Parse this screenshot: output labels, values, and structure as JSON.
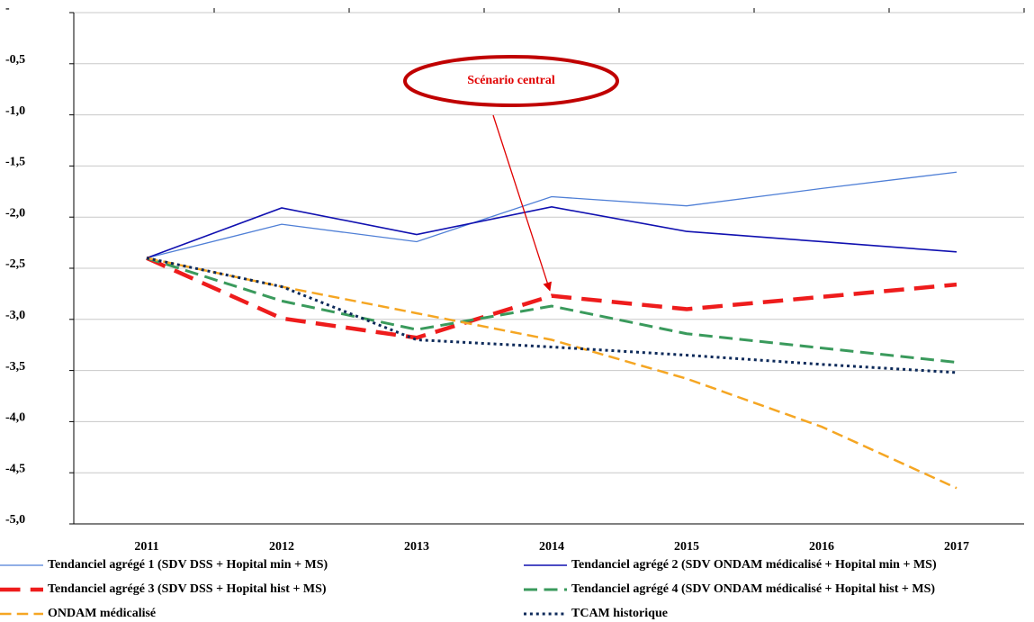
{
  "chart_data": {
    "type": "line",
    "annotation": "Scénario central",
    "categories": [
      "2011",
      "2012",
      "2013",
      "2014",
      "2015",
      "2016",
      "2017"
    ],
    "series": [
      {
        "name": "Tendanciel agrégé 1 (SDV DSS + Hopital min + MS)",
        "color": "#4f7fd6",
        "style": "solid",
        "width": 1.3,
        "values": [
          -2.4,
          -2.07,
          -2.24,
          -1.8,
          -1.89,
          -1.72,
          -1.56
        ]
      },
      {
        "name": "Tendanciel agrégé 2  (SDV ONDAM médicalisé + Hopital min + MS)",
        "color": "#1010b0",
        "style": "solid",
        "width": 1.6,
        "values": [
          -2.4,
          -1.91,
          -2.17,
          -1.9,
          -2.14,
          -2.24,
          -2.34
        ]
      },
      {
        "name": "Tendanciel agrégé 3  (SDV DSS + Hopital hist + MS)",
        "color": "#ee1c1c",
        "style": "dashed",
        "width": 4.5,
        "values": [
          -2.4,
          -2.99,
          -3.18,
          -2.77,
          -2.9,
          -2.78,
          -2.66
        ]
      },
      {
        "name": "Tendanciel agrégé 4 (SDV ONDAM médicalisé + Hopital hist + MS)",
        "color": "#3a9a5c",
        "style": "dashed",
        "width": 3,
        "values": [
          -2.4,
          -2.82,
          -3.1,
          -2.87,
          -3.14,
          -3.28,
          -3.42
        ]
      },
      {
        "name": "ONDAM médicalisé",
        "color": "#f5a623",
        "style": "dashed",
        "width": 2.5,
        "values": [
          -2.4,
          -2.68,
          -2.94,
          -3.2,
          -3.58,
          -4.05,
          -4.65
        ]
      },
      {
        "name": "TCAM historique",
        "color": "#0d2a5a",
        "style": "dotted",
        "width": 3,
        "values": [
          -2.4,
          -2.68,
          -3.2,
          -3.27,
          -3.35,
          -3.44,
          -3.52
        ]
      }
    ],
    "ylim": [
      -5,
      0
    ],
    "yticks": [
      {
        "value": 0,
        "label": "-"
      },
      {
        "value": -0.5,
        "label": "-0,5"
      },
      {
        "value": -1,
        "label": "-1,0"
      },
      {
        "value": -1.5,
        "label": "-1,5"
      },
      {
        "value": -2,
        "label": "-2,0"
      },
      {
        "value": -2.5,
        "label": "-2,5"
      },
      {
        "value": -3,
        "label": "-3,0"
      },
      {
        "value": -3.5,
        "label": "-3,5"
      },
      {
        "value": -4,
        "label": "-4,0"
      },
      {
        "value": -4.5,
        "label": "-4,5"
      },
      {
        "value": -5,
        "label": "-5,0"
      }
    ],
    "grid": true,
    "legend": "bottom"
  }
}
